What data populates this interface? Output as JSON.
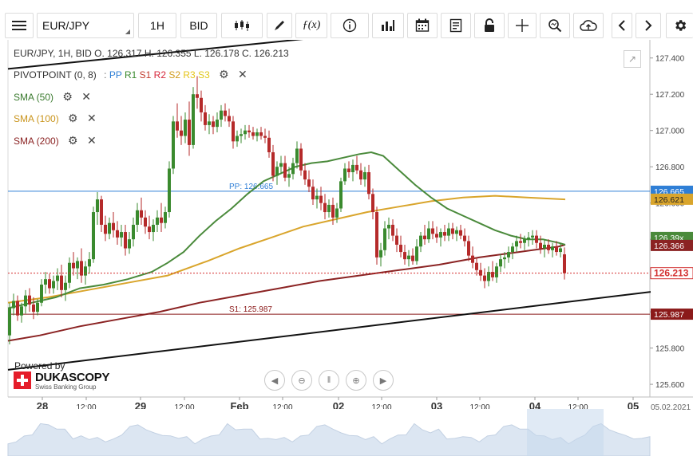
{
  "toolbar": {
    "instrument": "EUR/JPY",
    "period": "1H",
    "price_side": "BID"
  },
  "legend": {
    "ohlc_line": "EUR/JPY, 1H, BID   O. 126.317 H. 126.355 L. 126.178 C. 126.213",
    "pivot_label": "PIVOTPOINT (0, 8)",
    "pivot_levels": [
      {
        "label": "PP",
        "color": "#2f7fd6"
      },
      {
        "label": "R1",
        "color": "#3a8a2e"
      },
      {
        "label": "S1",
        "color": "#c0392b"
      },
      {
        "label": "R2",
        "color": "#d6283c"
      },
      {
        "label": "S2",
        "color": "#d19a1b"
      },
      {
        "label": "R3",
        "color": "#e6c417"
      },
      {
        "label": "S3",
        "color": "#e0c81a"
      }
    ],
    "sma50": "SMA (50)",
    "sma100": "SMA (100)",
    "sma200": "SMA (200)"
  },
  "branding": {
    "powered_by": "Powered by",
    "company": "DUKASCOPY",
    "tagline": "Swiss Banking Group"
  },
  "chart_data": {
    "type": "candlestick",
    "instrument": "EUR/JPY",
    "timeframe": "1H",
    "side": "BID",
    "ohlc": {
      "open": 126.317,
      "high": 126.355,
      "low": 126.178,
      "close": 126.213
    },
    "ylim": [
      125.53,
      127.5
    ],
    "y_ticks": [
      125.6,
      125.8,
      126.0,
      126.2,
      126.4,
      126.6,
      126.8,
      127.0,
      127.2,
      127.4
    ],
    "y_tick_labels": [
      "125.600",
      "125.800",
      "126.000",
      "126.200",
      "126.400",
      "126.600",
      "126.800",
      "127.000",
      "127.200",
      "127.400"
    ],
    "x_labels": [
      "28",
      "12:00",
      "29",
      "12:00",
      "Feb",
      "12:00",
      "02",
      "12:00",
      "03",
      "12:00",
      "04",
      "12:00",
      "05",
      "05.02.2021"
    ],
    "x_label_bold": [
      true,
      false,
      true,
      false,
      true,
      false,
      true,
      false,
      true,
      false,
      true,
      false,
      true,
      false
    ],
    "pivot_lines": [
      {
        "name": "PP",
        "label": "PP: 126.665",
        "value": 126.665,
        "color": "#2f7fd6"
      },
      {
        "name": "S1",
        "label": "S1: 125.987",
        "value": 125.987,
        "color": "#8b1a1a"
      }
    ],
    "price_tags": [
      {
        "name": "PP",
        "value": 126.665,
        "text": "126.665",
        "bg": "#2f7fd6",
        "fg": "#ffffff"
      },
      {
        "name": "SMA100",
        "value": 126.621,
        "text": "126.621",
        "bg": "#d9a52c",
        "fg": "#222222"
      },
      {
        "name": "SMA50",
        "value": 126.4,
        "text": "126.39x",
        "bg": "#4a8a3b",
        "fg": "#ffffff"
      },
      {
        "name": "SMA200",
        "value": 126.366,
        "text": "126.366",
        "bg": "#8b2323",
        "fg": "#ffffff"
      },
      {
        "name": "last",
        "value": 126.213,
        "text": "126.213",
        "bg": "#ffffff",
        "fg": "#d32f2f"
      },
      {
        "name": "S1",
        "value": 125.987,
        "text": "125.987",
        "bg": "#8b1a1a",
        "fg": "#ffffff"
      }
    ],
    "last_price": 126.213,
    "colors": {
      "up": "#3a8a2e",
      "down": "#b52a2a",
      "sma50": "#4a8a3b",
      "sma100": "#d9a52c",
      "sma200": "#8b2323",
      "trend": "#111111"
    },
    "sma50": [
      [
        10,
        126.02
      ],
      [
        40,
        126.05
      ],
      [
        70,
        126.08
      ],
      [
        100,
        126.13
      ],
      [
        130,
        126.15
      ],
      [
        160,
        126.18
      ],
      [
        190,
        126.22
      ],
      [
        210,
        126.27
      ],
      [
        230,
        126.33
      ],
      [
        250,
        126.42
      ],
      [
        270,
        126.5
      ],
      [
        290,
        126.57
      ],
      [
        310,
        126.65
      ],
      [
        330,
        126.72
      ],
      [
        350,
        126.76
      ],
      [
        370,
        126.8
      ],
      [
        390,
        126.82
      ],
      [
        410,
        126.83
      ],
      [
        430,
        126.85
      ],
      [
        450,
        126.87
      ],
      [
        465,
        126.88
      ],
      [
        480,
        126.86
      ],
      [
        500,
        126.78
      ],
      [
        520,
        126.7
      ],
      [
        540,
        126.63
      ],
      [
        560,
        126.57
      ],
      [
        580,
        126.53
      ],
      [
        600,
        126.49
      ],
      [
        620,
        126.45
      ],
      [
        640,
        126.42
      ],
      [
        660,
        126.4
      ],
      [
        680,
        126.4
      ],
      [
        700,
        126.38
      ],
      [
        708,
        126.37
      ]
    ],
    "sma100": [
      [
        10,
        126.05
      ],
      [
        60,
        126.08
      ],
      [
        110,
        126.12
      ],
      [
        160,
        126.16
      ],
      [
        210,
        126.2
      ],
      [
        260,
        126.28
      ],
      [
        300,
        126.35
      ],
      [
        340,
        126.41
      ],
      [
        380,
        126.47
      ],
      [
        420,
        126.51
      ],
      [
        460,
        126.55
      ],
      [
        500,
        126.58
      ],
      [
        540,
        126.61
      ],
      [
        580,
        126.63
      ],
      [
        620,
        126.64
      ],
      [
        660,
        126.63
      ],
      [
        708,
        126.62
      ]
    ],
    "sma200": [
      [
        10,
        125.84
      ],
      [
        50,
        125.87
      ],
      [
        100,
        125.92
      ],
      [
        150,
        125.96
      ],
      [
        200,
        126.0
      ],
      [
        250,
        126.05
      ],
      [
        300,
        126.09
      ],
      [
        350,
        126.13
      ],
      [
        400,
        126.17
      ],
      [
        450,
        126.2
      ],
      [
        500,
        126.23
      ],
      [
        550,
        126.26
      ],
      [
        600,
        126.3
      ],
      [
        650,
        126.33
      ],
      [
        700,
        126.36
      ],
      [
        708,
        126.37
      ]
    ],
    "trendlines": [
      {
        "points": [
          [
            10,
            127.34
          ],
          [
            550,
            127.58
          ]
        ]
      },
      {
        "points": [
          [
            10,
            125.68
          ],
          [
            815,
            126.11
          ]
        ]
      }
    ],
    "candles_key": [
      "x",
      "open",
      "high",
      "low",
      "close"
    ],
    "candles": [
      [
        12,
        125.87,
        126.05,
        125.82,
        126.02
      ],
      [
        17,
        126.02,
        126.1,
        125.98,
        126.06
      ],
      [
        22,
        126.06,
        126.09,
        125.95,
        125.98
      ],
      [
        27,
        125.98,
        126.05,
        125.94,
        126.03
      ],
      [
        32,
        126.03,
        126.12,
        125.99,
        126.09
      ],
      [
        37,
        126.09,
        126.13,
        126.0,
        126.04
      ],
      [
        42,
        126.04,
        126.08,
        125.96,
        126.0
      ],
      [
        47,
        126.0,
        126.07,
        125.98,
        126.05
      ],
      [
        52,
        126.05,
        126.18,
        126.03,
        126.15
      ],
      [
        57,
        126.15,
        126.22,
        126.1,
        126.18
      ],
      [
        62,
        126.18,
        126.21,
        126.1,
        126.13
      ],
      [
        67,
        126.13,
        126.2,
        126.1,
        126.17
      ],
      [
        72,
        126.17,
        126.24,
        126.12,
        126.2
      ],
      [
        77,
        126.2,
        126.26,
        126.08,
        126.12
      ],
      [
        82,
        126.12,
        126.2,
        126.06,
        126.16
      ],
      [
        87,
        126.16,
        126.3,
        126.13,
        126.27
      ],
      [
        92,
        126.27,
        126.33,
        126.2,
        126.24
      ],
      [
        97,
        126.24,
        126.3,
        126.18,
        126.28
      ],
      [
        102,
        126.28,
        126.35,
        126.16,
        126.2
      ],
      [
        107,
        126.2,
        126.28,
        126.15,
        126.25
      ],
      [
        112,
        126.25,
        126.33,
        126.21,
        126.29
      ],
      [
        117,
        126.29,
        126.58,
        126.27,
        126.55
      ],
      [
        122,
        126.55,
        126.66,
        126.48,
        126.62
      ],
      [
        127,
        126.62,
        126.64,
        126.44,
        126.48
      ],
      [
        132,
        126.48,
        126.53,
        126.39,
        126.43
      ],
      [
        137,
        126.43,
        126.52,
        126.4,
        126.49
      ],
      [
        142,
        126.49,
        126.55,
        126.41,
        126.45
      ],
      [
        147,
        126.45,
        126.5,
        126.37,
        126.41
      ],
      [
        152,
        126.41,
        126.48,
        126.36,
        126.44
      ],
      [
        157,
        126.44,
        126.48,
        126.31,
        126.35
      ],
      [
        162,
        126.35,
        126.44,
        126.32,
        126.4
      ],
      [
        167,
        126.4,
        126.52,
        126.36,
        126.48
      ],
      [
        172,
        126.48,
        126.6,
        126.44,
        126.56
      ],
      [
        177,
        126.56,
        126.63,
        126.48,
        126.52
      ],
      [
        182,
        126.52,
        126.56,
        126.43,
        126.47
      ],
      [
        187,
        126.47,
        126.53,
        126.4,
        126.44
      ],
      [
        192,
        126.44,
        126.51,
        126.39,
        126.48
      ],
      [
        197,
        126.48,
        126.56,
        126.44,
        126.52
      ],
      [
        202,
        126.52,
        126.6,
        126.44,
        126.49
      ],
      [
        207,
        126.49,
        126.58,
        126.46,
        126.55
      ],
      [
        212,
        126.55,
        126.83,
        126.52,
        126.79
      ],
      [
        217,
        126.79,
        127.08,
        126.76,
        127.05
      ],
      [
        222,
        127.05,
        127.15,
        126.96,
        127.0
      ],
      [
        227,
        127.0,
        127.08,
        126.92,
        126.97
      ],
      [
        232,
        126.97,
        127.1,
        126.93,
        127.06
      ],
      [
        237,
        127.06,
        127.16,
        126.86,
        126.92
      ],
      [
        242,
        126.92,
        127.24,
        126.9,
        127.2
      ],
      [
        247,
        127.2,
        127.3,
        127.12,
        127.18
      ],
      [
        252,
        127.18,
        127.22,
        127.05,
        127.1
      ],
      [
        257,
        127.1,
        127.14,
        127.0,
        127.03
      ],
      [
        262,
        127.03,
        127.09,
        126.98,
        127.05
      ],
      [
        267,
        127.05,
        127.08,
        126.98,
        127.02
      ],
      [
        272,
        127.02,
        127.1,
        126.99,
        127.06
      ],
      [
        277,
        127.06,
        127.14,
        127.02,
        127.11
      ],
      [
        282,
        127.11,
        127.15,
        127.05,
        127.08
      ],
      [
        287,
        127.08,
        127.12,
        127.02,
        127.05
      ],
      [
        292,
        127.05,
        127.08,
        126.9,
        126.94
      ],
      [
        297,
        126.94,
        127.0,
        126.91,
        126.97
      ],
      [
        302,
        126.97,
        127.01,
        126.93,
        126.98
      ],
      [
        307,
        126.98,
        127.03,
        126.95,
        127.0
      ],
      [
        312,
        127.0,
        127.03,
        126.96,
        126.99
      ],
      [
        317,
        126.99,
        127.02,
        126.95,
        126.97
      ],
      [
        322,
        126.97,
        127.01,
        126.94,
        126.99
      ],
      [
        327,
        126.99,
        127.02,
        126.95,
        126.97
      ],
      [
        332,
        126.97,
        127.01,
        126.93,
        126.96
      ],
      [
        337,
        126.96,
        127.0,
        126.85,
        126.88
      ],
      [
        342,
        126.88,
        126.92,
        126.72,
        126.75
      ],
      [
        347,
        126.75,
        126.83,
        126.7,
        126.8
      ],
      [
        352,
        126.8,
        126.86,
        126.76,
        126.82
      ],
      [
        357,
        126.82,
        126.86,
        126.72,
        126.74
      ],
      [
        362,
        126.74,
        126.8,
        126.69,
        126.76
      ],
      [
        367,
        126.76,
        126.85,
        126.73,
        126.82
      ],
      [
        372,
        126.82,
        126.94,
        126.79,
        126.9
      ],
      [
        377,
        126.9,
        126.93,
        126.75,
        126.78
      ],
      [
        382,
        126.78,
        126.82,
        126.7,
        126.73
      ],
      [
        387,
        126.73,
        126.78,
        126.66,
        126.69
      ],
      [
        392,
        126.69,
        126.73,
        126.59,
        126.62
      ],
      [
        397,
        126.62,
        126.68,
        126.57,
        126.64
      ],
      [
        402,
        126.64,
        126.69,
        126.56,
        126.6
      ],
      [
        407,
        126.6,
        126.65,
        126.51,
        126.55
      ],
      [
        412,
        126.55,
        126.62,
        126.52,
        126.59
      ],
      [
        417,
        126.59,
        126.63,
        126.48,
        126.52
      ],
      [
        422,
        126.52,
        126.6,
        126.49,
        126.57
      ],
      [
        427,
        126.57,
        126.74,
        126.55,
        126.72
      ],
      [
        432,
        126.72,
        126.82,
        126.7,
        126.79
      ],
      [
        437,
        126.79,
        126.83,
        126.74,
        126.77
      ],
      [
        442,
        126.77,
        126.84,
        126.72,
        126.81
      ],
      [
        447,
        126.81,
        126.86,
        126.76,
        126.78
      ],
      [
        452,
        126.78,
        126.82,
        126.7,
        126.73
      ],
      [
        457,
        126.73,
        126.8,
        126.69,
        126.77
      ],
      [
        462,
        126.77,
        126.81,
        126.62,
        126.65
      ],
      [
        467,
        126.65,
        126.68,
        126.51,
        126.55
      ],
      [
        472,
        126.55,
        126.58,
        126.26,
        126.3
      ],
      [
        477,
        126.3,
        126.38,
        126.25,
        126.34
      ],
      [
        482,
        126.34,
        126.5,
        126.31,
        126.46
      ],
      [
        487,
        126.46,
        126.52,
        126.4,
        126.48
      ],
      [
        492,
        126.48,
        126.51,
        126.39,
        126.42
      ],
      [
        497,
        126.42,
        126.46,
        126.33,
        126.37
      ],
      [
        502,
        126.37,
        126.42,
        126.3,
        126.33
      ],
      [
        507,
        126.33,
        126.37,
        126.26,
        126.29
      ],
      [
        512,
        126.29,
        126.34,
        126.25,
        126.31
      ],
      [
        517,
        126.31,
        126.35,
        126.26,
        126.28
      ],
      [
        522,
        126.28,
        126.4,
        126.26,
        126.36
      ],
      [
        527,
        126.36,
        126.44,
        126.33,
        126.42
      ],
      [
        532,
        126.42,
        126.48,
        126.37,
        126.4
      ],
      [
        537,
        126.4,
        126.5,
        126.38,
        126.46
      ],
      [
        542,
        126.46,
        126.5,
        126.4,
        126.43
      ],
      [
        547,
        126.43,
        126.47,
        126.38,
        126.41
      ],
      [
        552,
        126.41,
        126.46,
        126.36,
        126.44
      ],
      [
        557,
        126.44,
        126.48,
        126.39,
        126.42
      ],
      [
        562,
        126.42,
        126.49,
        126.39,
        126.46
      ],
      [
        567,
        126.46,
        126.49,
        126.4,
        126.43
      ],
      [
        572,
        126.43,
        126.47,
        126.39,
        126.45
      ],
      [
        577,
        126.45,
        126.48,
        126.4,
        126.42
      ],
      [
        582,
        126.42,
        126.46,
        126.36,
        126.39
      ],
      [
        587,
        126.39,
        126.42,
        126.28,
        126.31
      ],
      [
        592,
        126.31,
        126.36,
        126.24,
        126.27
      ],
      [
        597,
        126.27,
        126.3,
        126.2,
        126.23
      ],
      [
        602,
        126.23,
        126.27,
        126.17,
        126.2
      ],
      [
        607,
        126.2,
        126.24,
        126.13,
        126.17
      ],
      [
        612,
        126.17,
        126.25,
        126.14,
        126.22
      ],
      [
        617,
        126.22,
        126.28,
        126.17,
        126.19
      ],
      [
        622,
        126.19,
        126.27,
        126.16,
        126.25
      ],
      [
        627,
        126.25,
        126.32,
        126.22,
        126.29
      ],
      [
        632,
        126.29,
        126.33,
        126.24,
        126.3
      ],
      [
        637,
        126.3,
        126.36,
        126.27,
        126.33
      ],
      [
        642,
        126.33,
        126.38,
        126.29,
        126.36
      ],
      [
        647,
        126.36,
        126.42,
        126.33,
        126.39
      ],
      [
        652,
        126.39,
        126.43,
        126.35,
        126.38
      ],
      [
        657,
        126.38,
        126.42,
        126.34,
        126.4
      ],
      [
        662,
        126.4,
        126.44,
        126.36,
        126.41
      ],
      [
        667,
        126.41,
        126.45,
        126.37,
        126.42
      ],
      [
        672,
        126.42,
        126.45,
        126.35,
        126.38
      ],
      [
        677,
        126.38,
        126.42,
        126.32,
        126.35
      ],
      [
        682,
        126.35,
        126.4,
        126.3,
        126.37
      ],
      [
        687,
        126.37,
        126.4,
        126.32,
        126.34
      ],
      [
        692,
        126.34,
        126.38,
        126.3,
        126.36
      ],
      [
        697,
        126.36,
        126.39,
        126.31,
        126.33
      ],
      [
        702,
        126.33,
        126.38,
        126.3,
        126.35
      ],
      [
        707,
        126.317,
        126.355,
        126.178,
        126.213
      ]
    ]
  }
}
